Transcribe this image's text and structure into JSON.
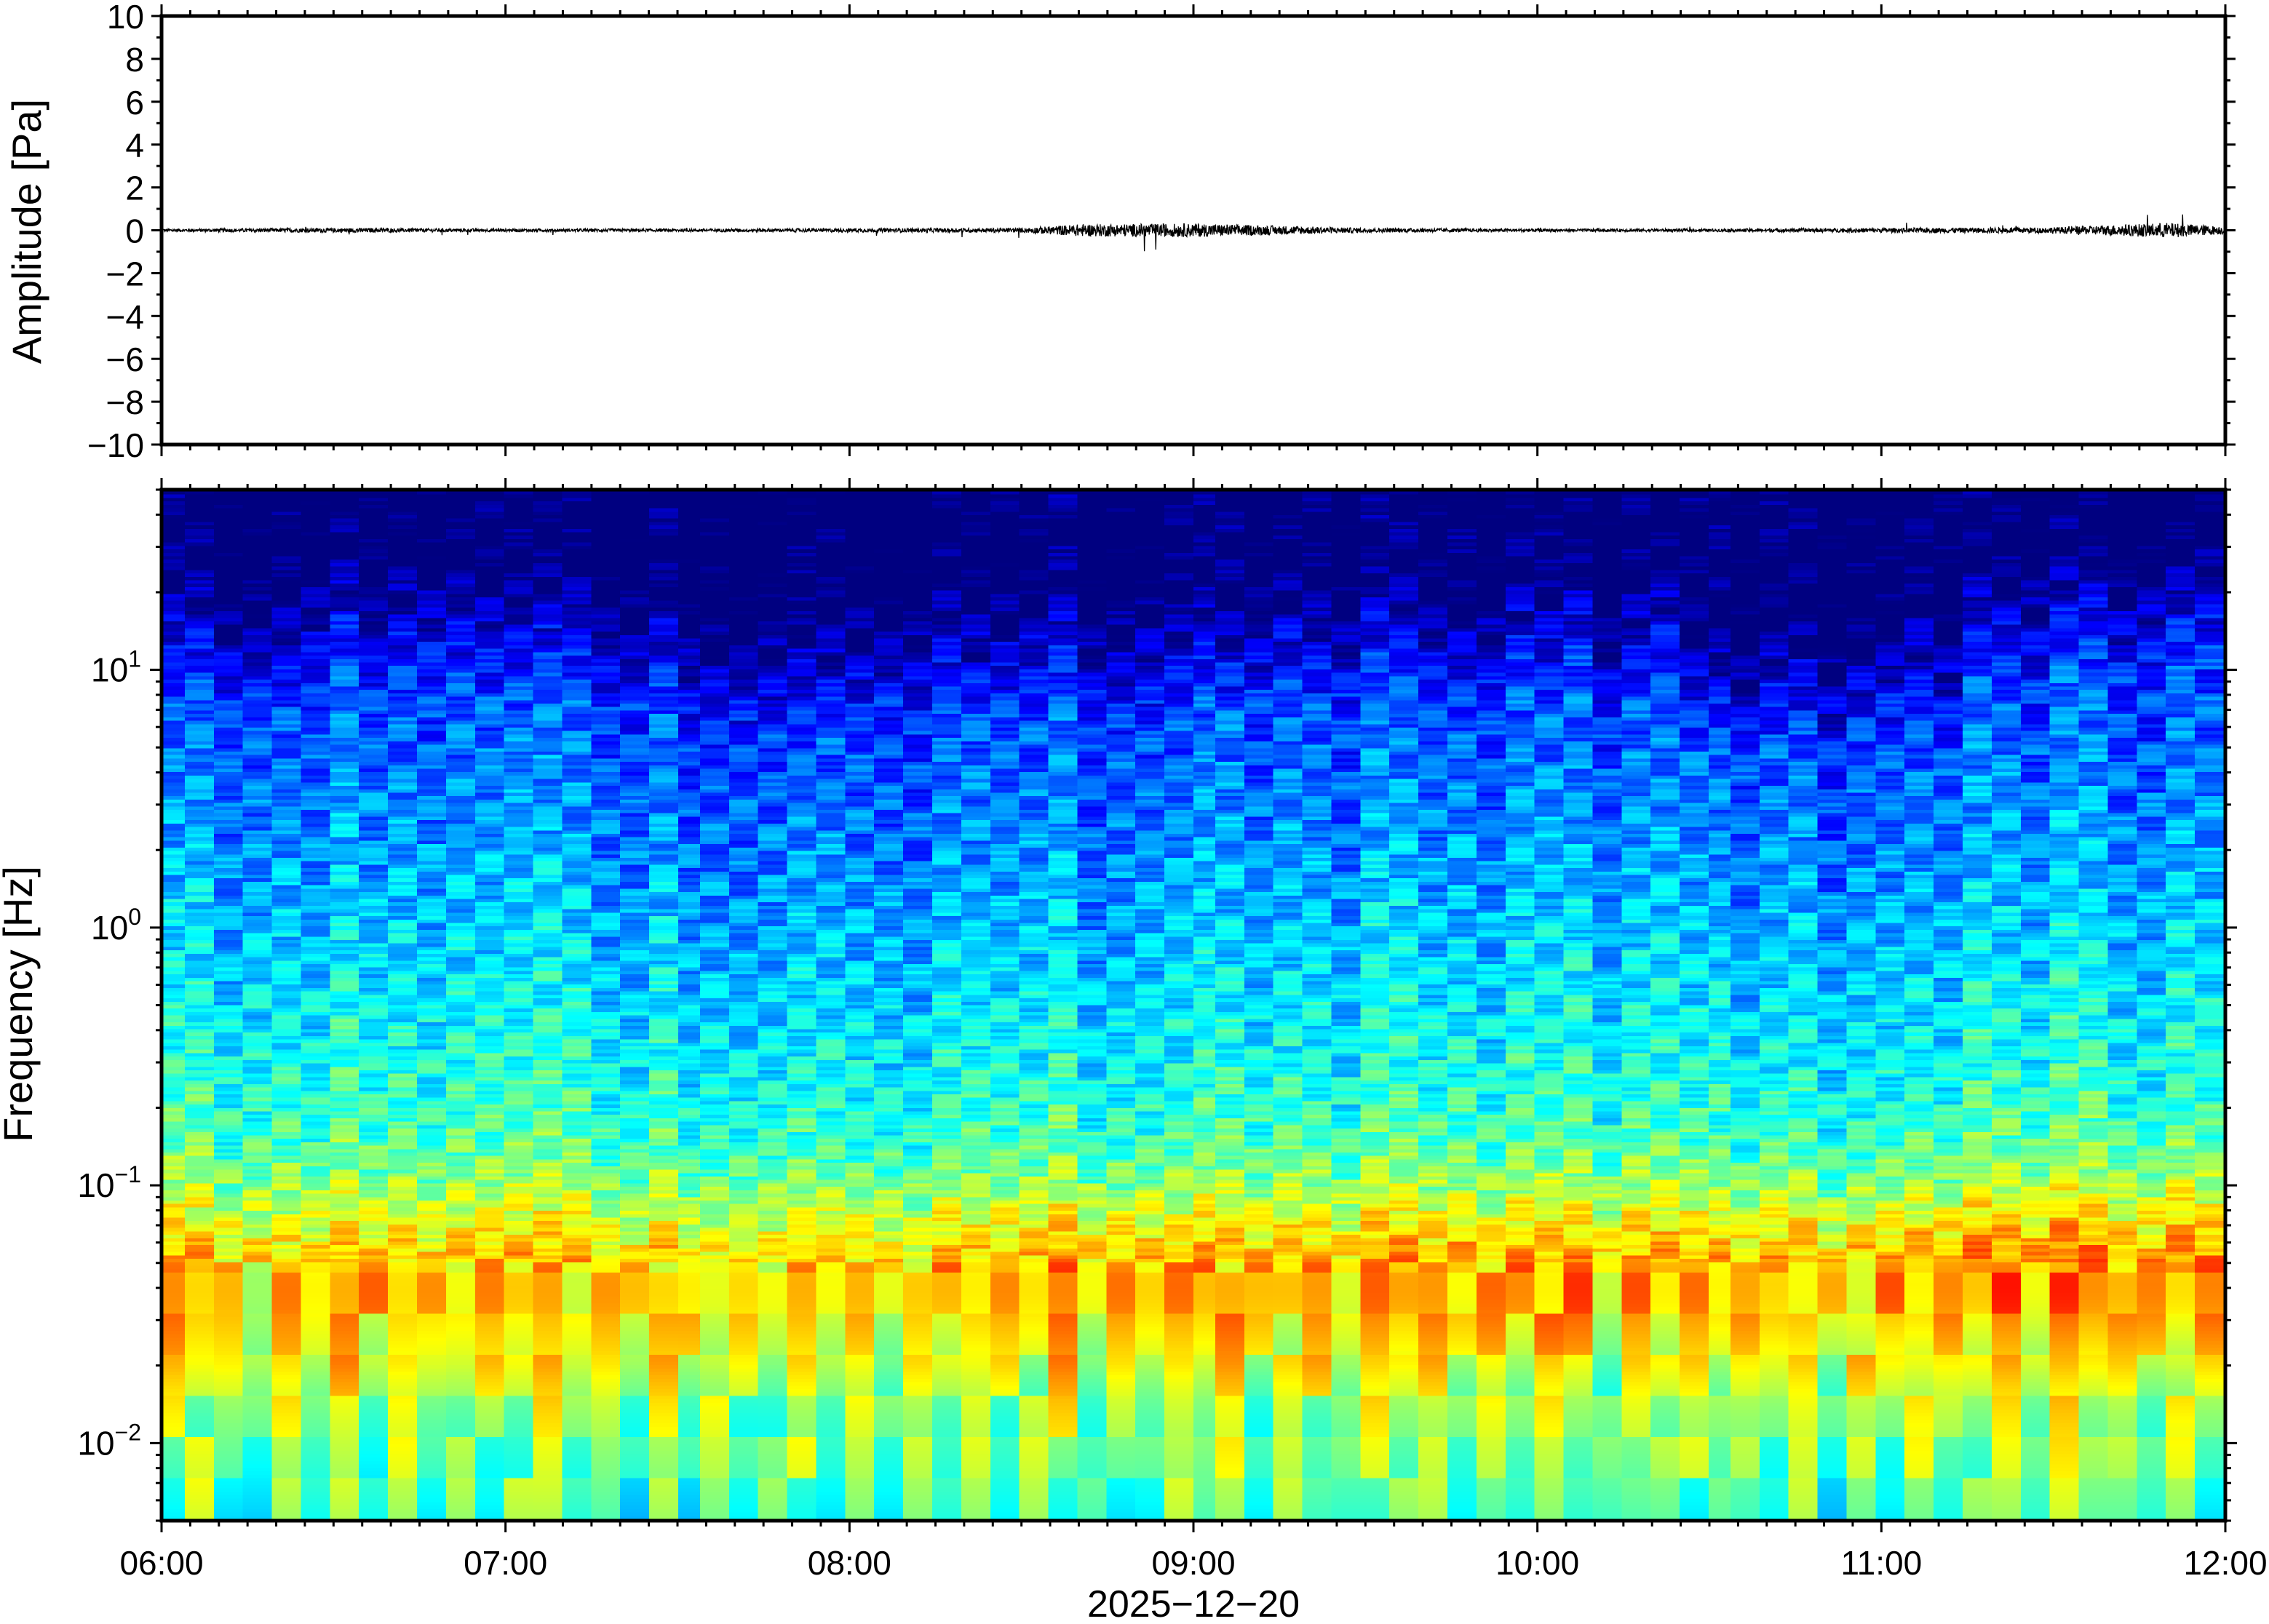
{
  "chart_data": [
    {
      "type": "line",
      "title": "",
      "ylabel": "Amplitude [Pa]",
      "xlabel": "",
      "ylim": [
        -10,
        10
      ],
      "yticks": [
        "10",
        "8",
        "6",
        "4",
        "2",
        "0",
        "−2",
        "−4",
        "−6",
        "−8",
        "−10"
      ],
      "xlim": [
        "06:00",
        "12:00"
      ],
      "series": [
        {
          "values_description_note": "",
          "x": [
            "06:00",
            "06:30",
            "07:00",
            "07:30",
            "08:00",
            "08:30",
            "08:40",
            "09:00",
            "09:30",
            "10:00",
            "10:30",
            "11:00",
            "11:30",
            "11:50",
            "12:00"
          ],
          "y_envelope": [
            0.2,
            0.3,
            0.2,
            0.2,
            0.25,
            0.3,
            0.8,
            0.9,
            0.3,
            0.2,
            0.2,
            0.3,
            0.4,
            1.0,
            0.5
          ]
        }
      ],
      "color": "#000000",
      "grid": false
    },
    {
      "type": "heatmap",
      "title": "",
      "ylabel": "Frequency [Hz]",
      "xlabel": "2025−12−20",
      "yscale": "log",
      "ylim": [
        0.005,
        50
      ],
      "yticks": [
        {
          "base": "10",
          "exp": "1",
          "value": 10
        },
        {
          "base": "10",
          "exp": "0",
          "value": 1
        },
        {
          "base": "10",
          "exp": "−1",
          "value": 0.1
        },
        {
          "base": "10",
          "exp": "−2",
          "value": 0.01
        }
      ],
      "xticks": [
        "06:00",
        "07:00",
        "08:00",
        "09:00",
        "10:00",
        "11:00",
        "12:00"
      ],
      "colormap": "jet",
      "grid": false,
      "columns": 72,
      "noise_ceiling_hz": [
        15,
        16,
        15,
        14,
        15,
        18,
        19,
        17,
        18,
        19,
        18,
        16,
        15,
        17,
        18,
        17,
        16,
        15,
        13,
        11,
        12,
        12,
        11,
        12,
        13,
        15,
        14,
        15,
        13,
        14,
        15,
        16,
        14,
        13,
        14,
        13,
        15,
        14,
        16,
        17,
        15,
        16,
        18,
        17,
        14,
        13,
        16,
        17,
        15,
        19,
        14,
        15,
        20,
        10,
        10,
        10,
        11,
        11,
        10,
        11,
        12,
        13,
        11,
        18,
        17,
        19,
        20,
        21,
        20,
        22,
        23,
        25
      ],
      "peak_band_hz": [
        0.04,
        0.05
      ],
      "low_freq_floor_strength": [
        0.45,
        0.4,
        0.42,
        0.38,
        0.35,
        0.4,
        0.42,
        0.45,
        0.4,
        0.38,
        0.42,
        0.45,
        0.44,
        0.4,
        0.42,
        0.46,
        0.44,
        0.45,
        0.42,
        0.48,
        0.5,
        0.46,
        0.5,
        0.48,
        0.52,
        0.5,
        0.48,
        0.52,
        0.5,
        0.55,
        0.52,
        0.54,
        0.6,
        0.62,
        0.58,
        0.56,
        0.55,
        0.52,
        0.54,
        0.5,
        0.52,
        0.55,
        0.56,
        0.55,
        0.6,
        0.62,
        0.58,
        0.56,
        0.55,
        0.54,
        0.5,
        0.52,
        0.55,
        0.58,
        0.6,
        0.62,
        0.58,
        0.56,
        0.6,
        0.64,
        0.66,
        0.68,
        0.7,
        0.68,
        0.66,
        0.7,
        0.72,
        0.7,
        0.68,
        0.7,
        0.72,
        0.7
      ]
    }
  ]
}
